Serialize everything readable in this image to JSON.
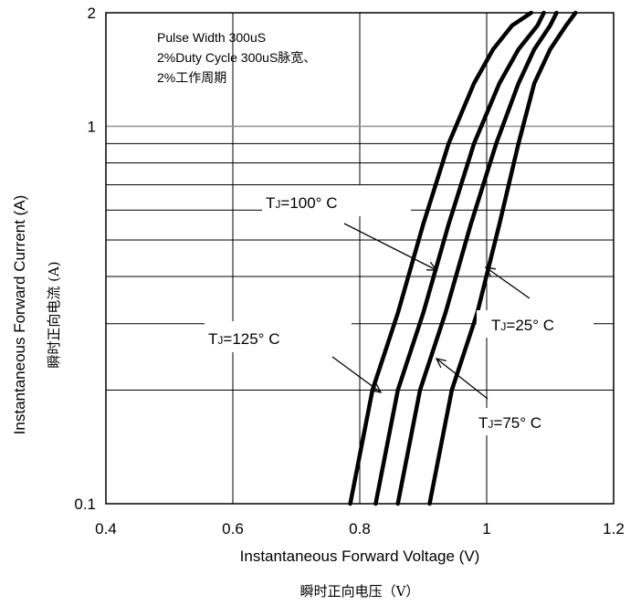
{
  "chart_data": {
    "type": "line",
    "xlabel": "Instantaneous Forward Voltage (V)",
    "xlabel_cn": "瞬时正向电压（V）",
    "ylabel": "Instantaneous Forward Current (A)",
    "ylabel_cn": "瞬时正向电流 (A)",
    "xlim": [
      0.4,
      1.2
    ],
    "ylim": [
      0.1,
      2
    ],
    "y_scale": "log",
    "grid": true,
    "x_ticks": [
      "0.4",
      "0.6",
      "0.8",
      "1",
      "1.2"
    ],
    "y_ticks": [
      "0.1",
      "1",
      "2"
    ],
    "notes": [
      "Pulse Width 300uS",
      "2%Duty Cycle 300uS脉宽、",
      "2%工作周期"
    ],
    "series": [
      {
        "name": "TJ=125°C",
        "x": [
          0.785,
          0.82,
          0.86,
          0.9,
          0.94,
          0.98,
          1.01,
          1.04,
          1.07
        ],
        "y": [
          0.1,
          0.2,
          0.32,
          0.55,
          0.9,
          1.3,
          1.6,
          1.85,
          2.0
        ]
      },
      {
        "name": "TJ=100°C",
        "x": [
          0.825,
          0.86,
          0.9,
          0.94,
          0.98,
          1.02,
          1.05,
          1.08,
          1.09
        ],
        "y": [
          0.1,
          0.2,
          0.32,
          0.55,
          0.9,
          1.3,
          1.6,
          1.85,
          2.0
        ]
      },
      {
        "name": "TJ=75°C",
        "x": [
          0.86,
          0.895,
          0.935,
          0.975,
          1.015,
          1.05,
          1.075,
          1.1,
          1.11
        ],
        "y": [
          0.1,
          0.2,
          0.32,
          0.55,
          0.9,
          1.3,
          1.6,
          1.85,
          2.0
        ]
      },
      {
        "name": "TJ=25°C",
        "x": [
          0.91,
          0.945,
          0.985,
          1.02,
          1.05,
          1.075,
          1.1,
          1.125,
          1.14
        ],
        "y": [
          0.1,
          0.2,
          0.32,
          0.55,
          0.9,
          1.3,
          1.6,
          1.85,
          2.0
        ]
      }
    ],
    "labels": [
      {
        "series": "TJ=100°C",
        "T": "T",
        "sub": "J",
        "rest": "=100° C"
      },
      {
        "series": "TJ=125°C",
        "T": "T",
        "sub": "J",
        "rest": "=125° C"
      },
      {
        "series": "TJ=25°C",
        "T": "T",
        "sub": "J",
        "rest": "=25° C"
      },
      {
        "series": "TJ=75°C",
        "T": "T",
        "sub": "J",
        "rest": "=75° C"
      }
    ]
  }
}
